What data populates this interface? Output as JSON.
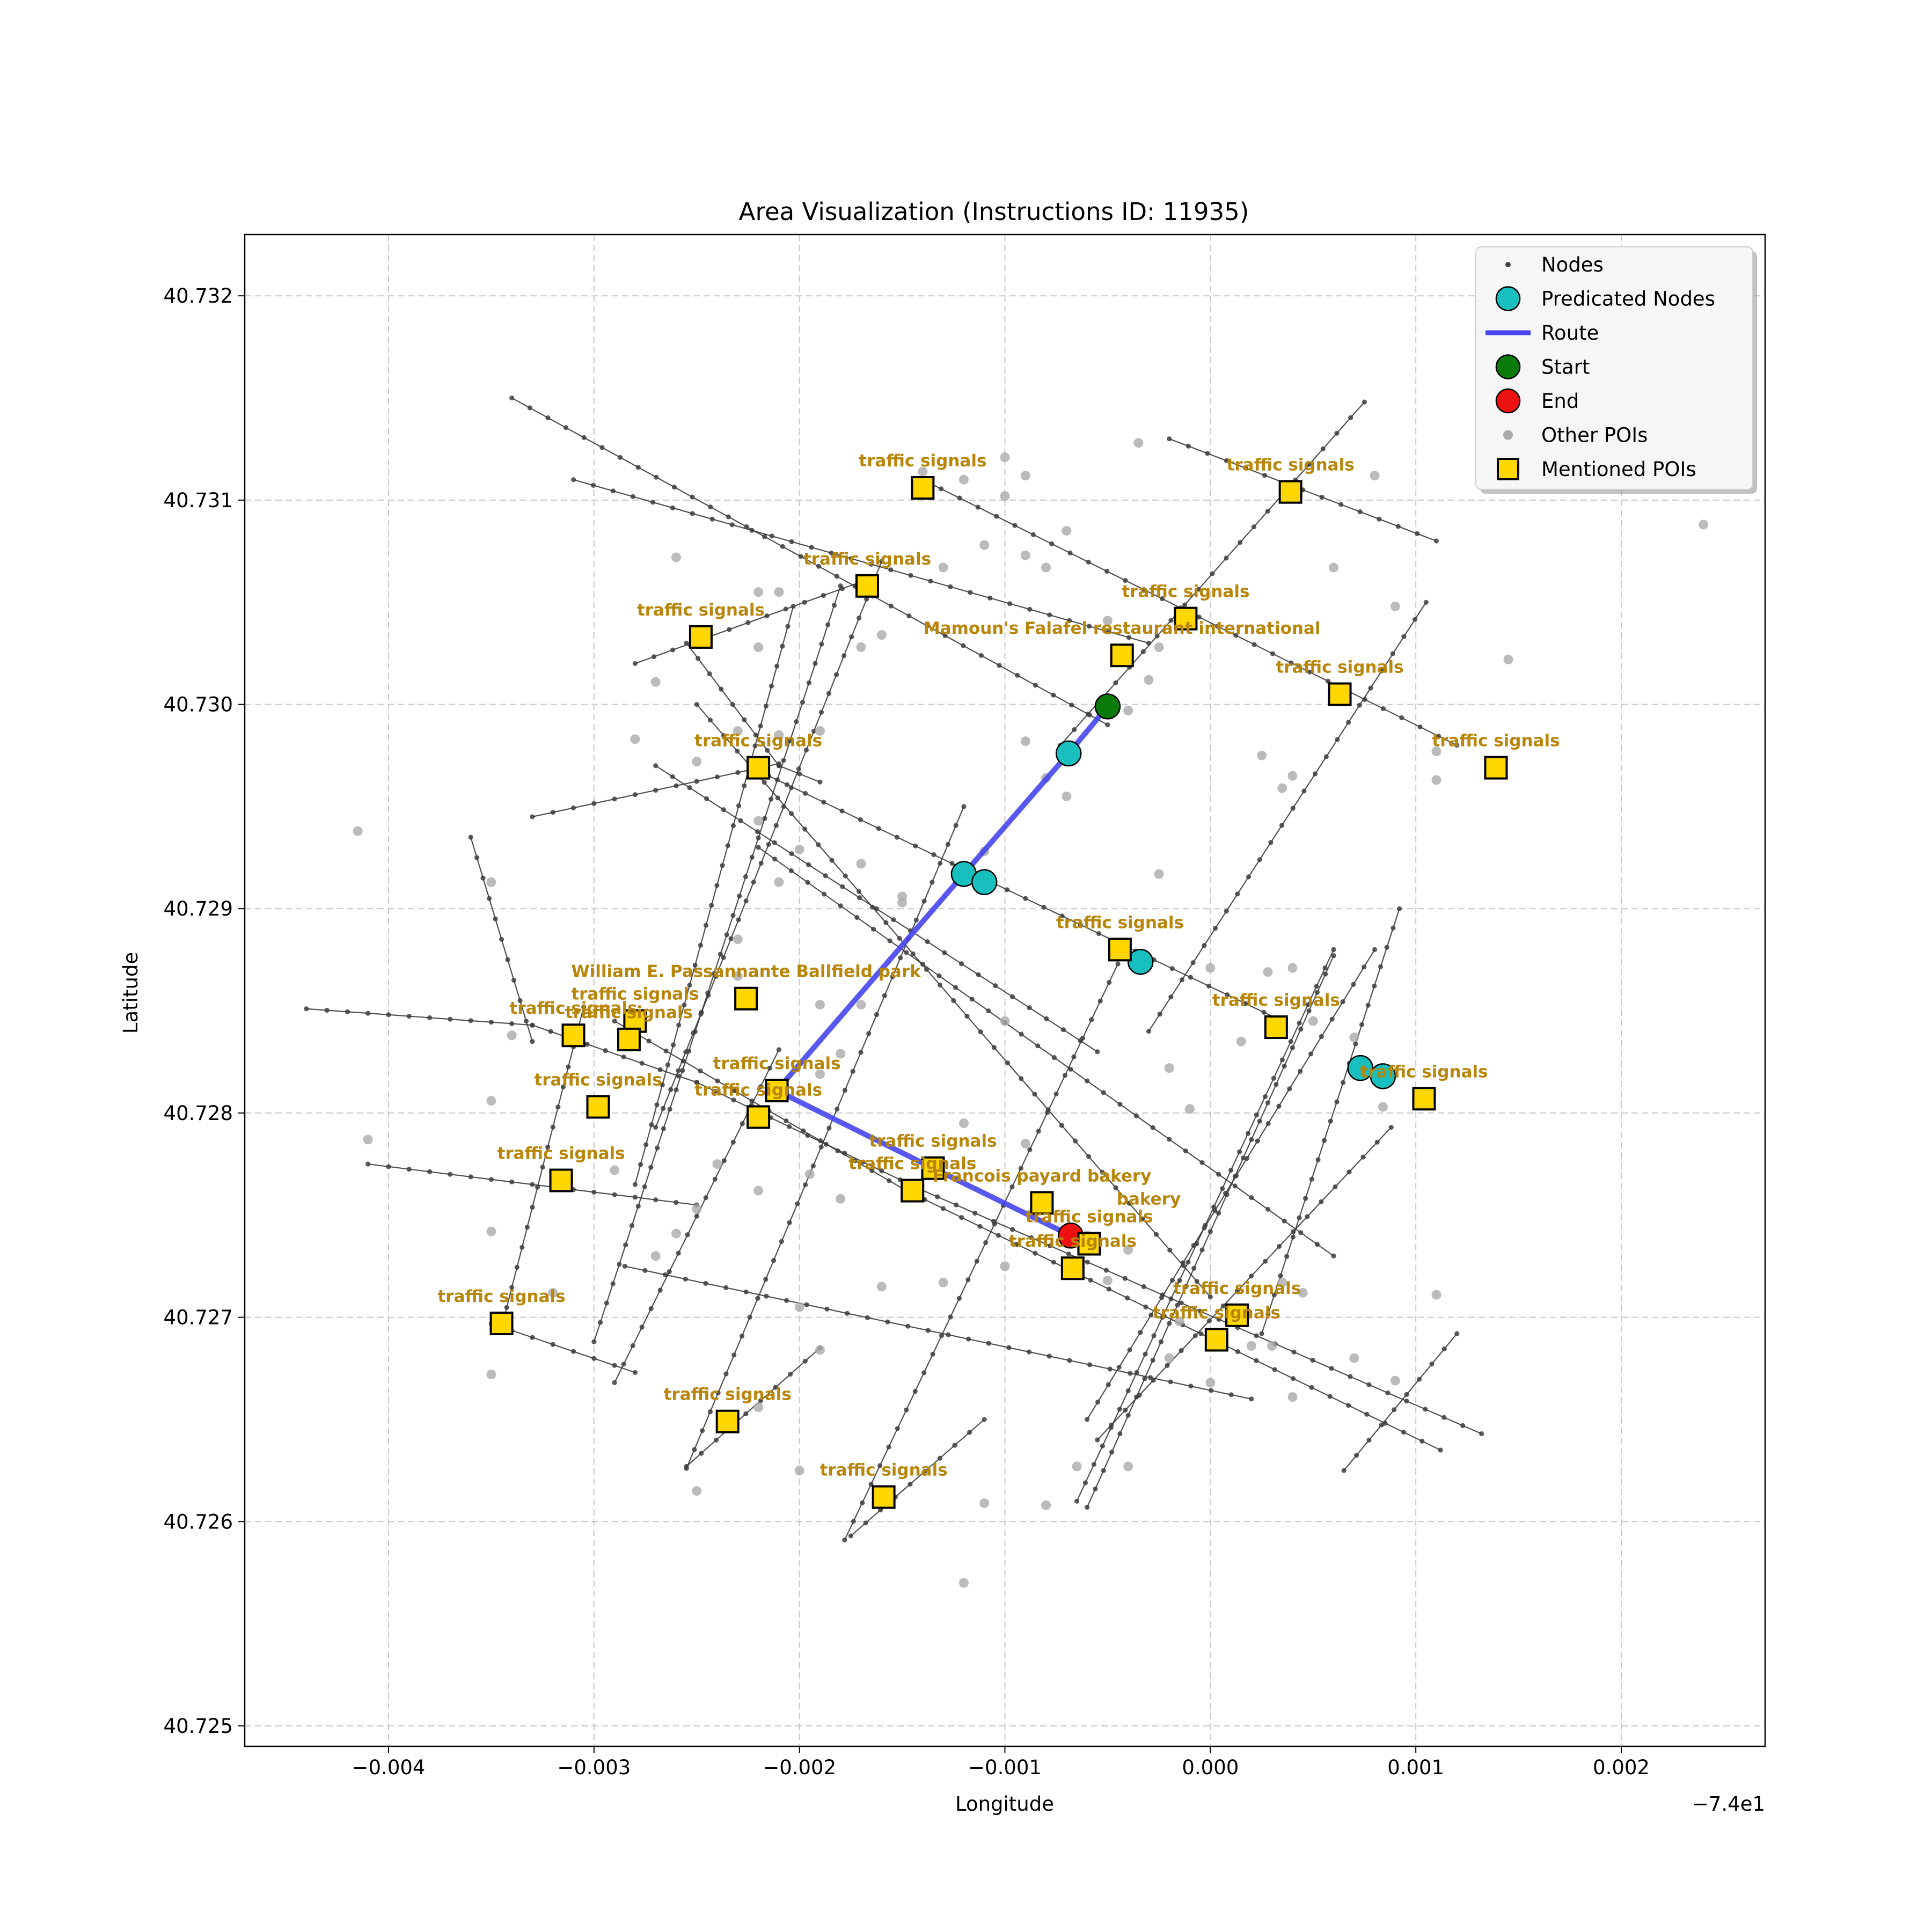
{
  "chart_data": {
    "type": "scatter",
    "title": "Area Visualization (Instructions ID: 11935)",
    "xlabel": "Longitude",
    "ylabel": "Latitude",
    "x_offset_label": "−7.4e1",
    "xlim": [
      -0.0047,
      0.0027
    ],
    "ylim": [
      40.7249,
      40.7323
    ],
    "x_ticks": [
      {
        "value": -0.004,
        "label": "−0.004"
      },
      {
        "value": -0.003,
        "label": "−0.003"
      },
      {
        "value": -0.002,
        "label": "−0.002"
      },
      {
        "value": -0.001,
        "label": "−0.001"
      },
      {
        "value": 0.0,
        "label": "0.000"
      },
      {
        "value": 0.001,
        "label": "0.001"
      },
      {
        "value": 0.002,
        "label": "0.002"
      }
    ],
    "y_ticks": [
      {
        "value": 40.725,
        "label": "40.725"
      },
      {
        "value": 40.726,
        "label": "40.726"
      },
      {
        "value": 40.727,
        "label": "40.727"
      },
      {
        "value": 40.728,
        "label": "40.728"
      },
      {
        "value": 40.729,
        "label": "40.729"
      },
      {
        "value": 40.73,
        "label": "40.730"
      },
      {
        "value": 40.731,
        "label": "40.731"
      },
      {
        "value": 40.732,
        "label": "40.732"
      }
    ],
    "grid": true,
    "legend": {
      "position": "top-right",
      "entries": [
        {
          "label": "Nodes",
          "marker": "small-dot",
          "color": "#404040"
        },
        {
          "label": "Predicated Nodes",
          "marker": "circle",
          "color": "#17bfbf"
        },
        {
          "label": "Route",
          "marker": "line",
          "color": "#4646f0"
        },
        {
          "label": "Start",
          "marker": "circle",
          "color": "#0a7a0a"
        },
        {
          "label": "End",
          "marker": "circle",
          "color": "#ee1111"
        },
        {
          "label": "Other POIs",
          "marker": "dot",
          "color": "#aaaaaa"
        },
        {
          "label": "Mentioned POIs",
          "marker": "square",
          "color": "#ffd700"
        }
      ]
    },
    "colors": {
      "node": "#404040",
      "edge": "#303030",
      "route": "#4646f0",
      "predicated": "#17bfbf",
      "start": "#0a7a0a",
      "end": "#ee1111",
      "other_poi": "#aaaaaa",
      "mentioned_poi": "#ffd700",
      "poi_label": "#b8860b"
    },
    "edges": [
      [
        [
          -0.0034,
          40.7315
        ],
        [
          -0.0005,
          40.7299
        ]
      ],
      [
        [
          -0.0031,
          40.7311
        ],
        [
          -0.0003,
          40.7303
        ]
      ],
      [
        [
          -0.0027,
          40.7297
        ],
        [
          -0.00055,
          40.7283
        ]
      ],
      [
        [
          -0.00285,
          40.72725
        ],
        [
          0.0002,
          40.7266
        ]
      ],
      [
        [
          -0.0025,
          40.73
        ],
        [
          0.0,
          40.7271
        ]
      ],
      [
        [
          -0.0022,
          40.7293
        ],
        [
          0.0006,
          40.7273
        ]
      ],
      [
        [
          -0.0014,
          40.7311
        ],
        [
          0.0012,
          40.7298
        ]
      ],
      [
        [
          -0.0002,
          40.7313
        ],
        [
          0.0011,
          40.7308
        ]
      ],
      [
        [
          -0.0028,
          40.7302
        ],
        [
          -0.0017,
          40.7306
        ]
      ],
      [
        [
          -0.0033,
          40.72945
        ],
        [
          -0.0021,
          40.72971
        ]
      ],
      [
        [
          -0.00215,
          40.72965
        ],
        [
          0.00035,
          40.72845
        ]
      ],
      [
        [
          -0.0044,
          40.72851
        ],
        [
          -0.0033,
          40.72843
        ]
      ],
      [
        [
          -0.0033,
          40.72843
        ],
        [
          -0.0025,
          40.72815
        ]
      ],
      [
        [
          -0.0025,
          40.72815
        ],
        [
          -0.00142,
          40.72763
        ]
      ],
      [
        [
          -0.00142,
          40.72763
        ],
        [
          0.00132,
          40.72643
        ]
      ],
      [
        [
          -0.0029,
          40.72845
        ],
        [
          -0.00148,
          40.72762
        ]
      ],
      [
        [
          -0.00148,
          40.72762
        ],
        [
          0.00112,
          40.72635
        ]
      ],
      [
        [
          -0.0041,
          40.72775
        ],
        [
          -0.0025,
          40.72755
        ]
      ],
      [
        [
          -0.0036,
          40.72935
        ],
        [
          -0.0033,
          40.72835
        ]
      ],
      [
        [
          -0.00305,
          40.72852
        ],
        [
          -0.00345,
          40.72695
        ]
      ],
      [
        [
          -0.0035,
          40.72697
        ],
        [
          -0.0028,
          40.72673
        ]
      ],
      [
        [
          -0.00255,
          40.72627
        ],
        [
          -0.0019,
          40.72685
        ]
      ],
      [
        [
          -0.00175,
          40.72593
        ],
        [
          -0.0011,
          40.7265
        ]
      ],
      [
        [
          -0.00255,
          40.7303
        ],
        [
          -0.0021,
          40.7297
        ]
      ],
      [
        [
          -0.0021,
          40.7297
        ],
        [
          -0.0019,
          40.72962
        ]
      ],
      [
        [
          -0.0028,
          40.72765
        ],
        [
          -0.00203,
          40.73048
        ]
      ],
      [
        [
          -0.003,
          40.72688
        ],
        [
          -0.0018,
          40.73058
        ]
      ],
      [
        [
          -0.0027,
          40.72793
        ],
        [
          -0.0016,
          40.7307
        ]
      ],
      [
        [
          -0.0029,
          40.72668
        ],
        [
          -0.0021,
          40.72831
        ]
      ],
      [
        [
          -0.00255,
          40.72626
        ],
        [
          -0.0012,
          40.7295
        ]
      ],
      [
        [
          -0.00178,
          40.72591
        ],
        [
          -0.00045,
          40.72873
        ]
      ],
      [
        [
          -0.00065,
          40.7261
        ],
        [
          0.0006,
          40.7288
        ]
      ],
      [
        [
          -0.0006,
          40.72607
        ],
        [
          0.0006,
          40.72877
        ]
      ],
      [
        [
          -0.0003,
          40.7284
        ],
        [
          0.00105,
          40.7305
        ]
      ],
      [
        [
          -0.00073,
          40.7298
        ],
        [
          0.00075,
          40.73148
        ]
      ],
      [
        [
          -0.0006,
          40.7265
        ],
        [
          0.0008,
          40.7288
        ]
      ],
      [
        [
          0.00065,
          40.72625
        ],
        [
          0.0012,
          40.72692
        ]
      ],
      [
        [
          0.00025,
          40.72692
        ],
        [
          0.00092,
          40.729
        ]
      ],
      [
        [
          -0.00055,
          40.7264
        ],
        [
          0.00088,
          40.72793
        ]
      ]
    ],
    "route": [
      [
        -0.0005,
        40.72999
      ],
      [
        -0.00069,
        40.72976
      ],
      [
        -0.0012,
        40.72917
      ],
      [
        -0.00211,
        40.72811
      ],
      [
        -0.00135,
        40.72773
      ],
      [
        -0.00068,
        40.7274
      ]
    ],
    "start": [
      -0.0005,
      40.72999
    ],
    "end": [
      -0.00068,
      40.7274
    ],
    "predicated_nodes": [
      [
        -0.00069,
        40.72976
      ],
      [
        -0.0012,
        40.72917
      ],
      [
        -0.0011,
        40.72913
      ],
      [
        -0.00034,
        40.72874
      ],
      [
        0.00073,
        40.72822
      ],
      [
        0.00084,
        40.72818
      ]
    ],
    "other_pois": [
      [
        -0.0026,
        40.73072
      ],
      [
        -0.0022,
        40.73055
      ],
      [
        -0.0021,
        40.73055
      ],
      [
        -0.0022,
        40.73028
      ],
      [
        -0.0017,
        40.73028
      ],
      [
        -0.0016,
        40.73034
      ],
      [
        -0.0013,
        40.73067
      ],
      [
        -0.0014,
        40.73114
      ],
      [
        -0.0012,
        40.7311
      ],
      [
        -0.001,
        40.73121
      ],
      [
        -0.0009,
        40.73112
      ],
      [
        -0.001,
        40.73102
      ],
      [
        -0.0011,
        40.73078
      ],
      [
        -0.0009,
        40.73073
      ],
      [
        -0.0008,
        40.73067
      ],
      [
        -0.0007,
        40.73085
      ],
      [
        -0.00035,
        40.73128
      ],
      [
        -0.0005,
        40.73041
      ],
      [
        -0.00025,
        40.73028
      ],
      [
        -0.0003,
        40.73012
      ],
      [
        -0.0004,
        40.72997
      ],
      [
        0.0006,
        40.73067
      ],
      [
        0.0008,
        40.73112
      ],
      [
        0.0009,
        40.73048
      ],
      [
        0.0011,
        40.72977
      ],
      [
        0.0011,
        40.72963
      ],
      [
        0.00025,
        40.72975
      ],
      [
        0.00035,
        40.72959
      ],
      [
        0.0004,
        40.72965
      ],
      [
        0.00145,
        40.73022
      ],
      [
        0.0024,
        40.73088
      ],
      [
        -0.0027,
        40.73011
      ],
      [
        -0.0028,
        40.72983
      ],
      [
        -0.0023,
        40.72987
      ],
      [
        -0.0021,
        40.72985
      ],
      [
        -0.0025,
        40.72972
      ],
      [
        -0.0022,
        40.72943
      ],
      [
        -0.0019,
        40.72987
      ],
      [
        -0.0009,
        40.72982
      ],
      [
        -0.0008,
        40.72964
      ],
      [
        -0.0007,
        40.72955
      ],
      [
        -0.0011,
        40.72928
      ],
      [
        -0.0015,
        40.72906
      ],
      [
        -0.0017,
        40.72922
      ],
      [
        -0.002,
        40.72929
      ],
      [
        -0.0021,
        40.72913
      ],
      [
        -0.00025,
        40.72917
      ],
      [
        -0.00415,
        40.72938
      ],
      [
        -0.0035,
        40.72913
      ],
      [
        -0.0034,
        40.72838
      ],
      [
        -0.0035,
        40.72806
      ],
      [
        -0.0041,
        40.72787
      ],
      [
        -0.0035,
        40.72742
      ],
      [
        -0.0023,
        40.72885
      ],
      [
        -0.0023,
        40.72867
      ],
      [
        -0.0019,
        40.72853
      ],
      [
        -0.0019,
        40.72819
      ],
      [
        -0.0017,
        40.72853
      ],
      [
        -0.0018,
        40.72829
      ],
      [
        -0.0015,
        40.72903
      ],
      [
        -0.0012,
        40.72795
      ],
      [
        -0.001,
        40.72845
      ],
      [
        -0.0009,
        40.72785
      ],
      [
        -0.0024,
        40.72775
      ],
      [
        -0.0025,
        40.72753
      ],
      [
        -0.0026,
        40.72741
      ],
      [
        -0.0027,
        40.7273
      ],
      [
        -0.0029,
        40.72772
      ],
      [
        -0.00195,
        40.7277
      ],
      [
        -0.0018,
        40.72758
      ],
      [
        -0.0022,
        40.72762
      ],
      [
        -0.002,
        40.72705
      ],
      [
        -0.0019,
        40.72684
      ],
      [
        -0.0016,
        40.72715
      ],
      [
        -0.0013,
        40.72717
      ],
      [
        -0.0035,
        40.72672
      ],
      [
        -0.0032,
        40.72712
      ],
      [
        -0.0025,
        40.72615
      ],
      [
        -0.002,
        40.72625
      ],
      [
        -0.0022,
        40.72656
      ],
      [
        -0.0011,
        40.72609
      ],
      [
        -0.0008,
        40.72608
      ],
      [
        -0.00065,
        40.72627
      ],
      [
        -0.0004,
        40.72627
      ],
      [
        -0.0012,
        40.7257
      ],
      [
        -0.0006,
        40.7274
      ],
      [
        -0.0004,
        40.72733
      ],
      [
        -0.0005,
        40.72718
      ],
      [
        -0.001,
        40.72725
      ],
      [
        0.0,
        40.72871
      ],
      [
        0.00028,
        40.72869
      ],
      [
        0.0004,
        40.72871
      ],
      [
        0.0005,
        40.72845
      ],
      [
        -0.0002,
        40.72822
      ],
      [
        -0.0001,
        40.72802
      ],
      [
        0.00015,
        40.72835
      ],
      [
        0.0011,
        40.72711
      ],
      [
        0.0009,
        40.72669
      ],
      [
        0.0007,
        40.7268
      ],
      [
        0.0002,
        40.72686
      ],
      [
        -0.0002,
        40.7268
      ],
      [
        -0.00015,
        40.72698
      ],
      [
        0.00045,
        40.72712
      ],
      [
        0.0003,
        40.72686
      ],
      [
        0.0004,
        40.72661
      ],
      [
        0.0,
        40.72668
      ],
      [
        0.00035,
        40.72717
      ],
      [
        0.0007,
        40.72837
      ],
      [
        0.00084,
        40.72803
      ]
    ],
    "mentioned_pois": [
      {
        "x": -0.0014,
        "y": 40.73106,
        "label": "traffic signals"
      },
      {
        "x": -0.00167,
        "y": 40.73058,
        "label": "traffic signals"
      },
      {
        "x": -0.00248,
        "y": 40.73033,
        "label": "traffic signals"
      },
      {
        "x": 0.00039,
        "y": 40.73104,
        "label": "traffic signals"
      },
      {
        "x": -0.00012,
        "y": 40.73042,
        "label": "traffic signals"
      },
      {
        "x": -0.00043,
        "y": 40.73024,
        "label": "Mamoun's Falafel restaurant international"
      },
      {
        "x": 0.00063,
        "y": 40.73005,
        "label": "traffic signals"
      },
      {
        "x": 0.00139,
        "y": 40.72969,
        "label": "traffic signals"
      },
      {
        "x": -0.0022,
        "y": 40.72969,
        "label": "traffic signals"
      },
      {
        "x": -0.00044,
        "y": 40.7288,
        "label": "traffic signals"
      },
      {
        "x": -0.00226,
        "y": 40.72856,
        "label": "William E. Passannante Ballfield   park"
      },
      {
        "x": -0.0031,
        "y": 40.72838,
        "label": "traffic signals"
      },
      {
        "x": -0.0028,
        "y": 40.72845,
        "label": "traffic signals"
      },
      {
        "x": -0.00283,
        "y": 40.72836,
        "label": "traffic signals"
      },
      {
        "x": 0.00032,
        "y": 40.72842,
        "label": "traffic signals"
      },
      {
        "x": 0.00104,
        "y": 40.72807,
        "label": "traffic signals"
      },
      {
        "x": -0.00298,
        "y": 40.72803,
        "label": "traffic signals"
      },
      {
        "x": -0.00211,
        "y": 40.72811,
        "label": "traffic signals"
      },
      {
        "x": -0.0022,
        "y": 40.72798,
        "label": "traffic signals"
      },
      {
        "x": -0.00135,
        "y": 40.72773,
        "label": "traffic signals"
      },
      {
        "x": -0.00145,
        "y": 40.72762,
        "label": "traffic signals"
      },
      {
        "x": -0.00082,
        "y": 40.72756,
        "label": "Francois payard bakery"
      },
      {
        "x": -0.00316,
        "y": 40.72767,
        "label": "traffic signals"
      },
      {
        "x": -0.00059,
        "y": 40.72736,
        "label": "traffic signals"
      },
      {
        "x": -0.00067,
        "y": 40.72724,
        "label": "traffic signals"
      },
      {
        "x": 0.00013,
        "y": 40.72701,
        "label": "traffic signals"
      },
      {
        "x": 3e-05,
        "y": 40.72689,
        "label": "traffic signals"
      },
      {
        "x": -0.00345,
        "y": 40.72697,
        "label": "traffic signals"
      },
      {
        "x": -0.00235,
        "y": 40.72649,
        "label": "traffic signals"
      },
      {
        "x": -0.00159,
        "y": 40.72612,
        "label": "traffic signals"
      }
    ],
    "extra_labels": [
      {
        "x": -0.0003,
        "y": 40.72756,
        "label": "bakery"
      }
    ]
  }
}
